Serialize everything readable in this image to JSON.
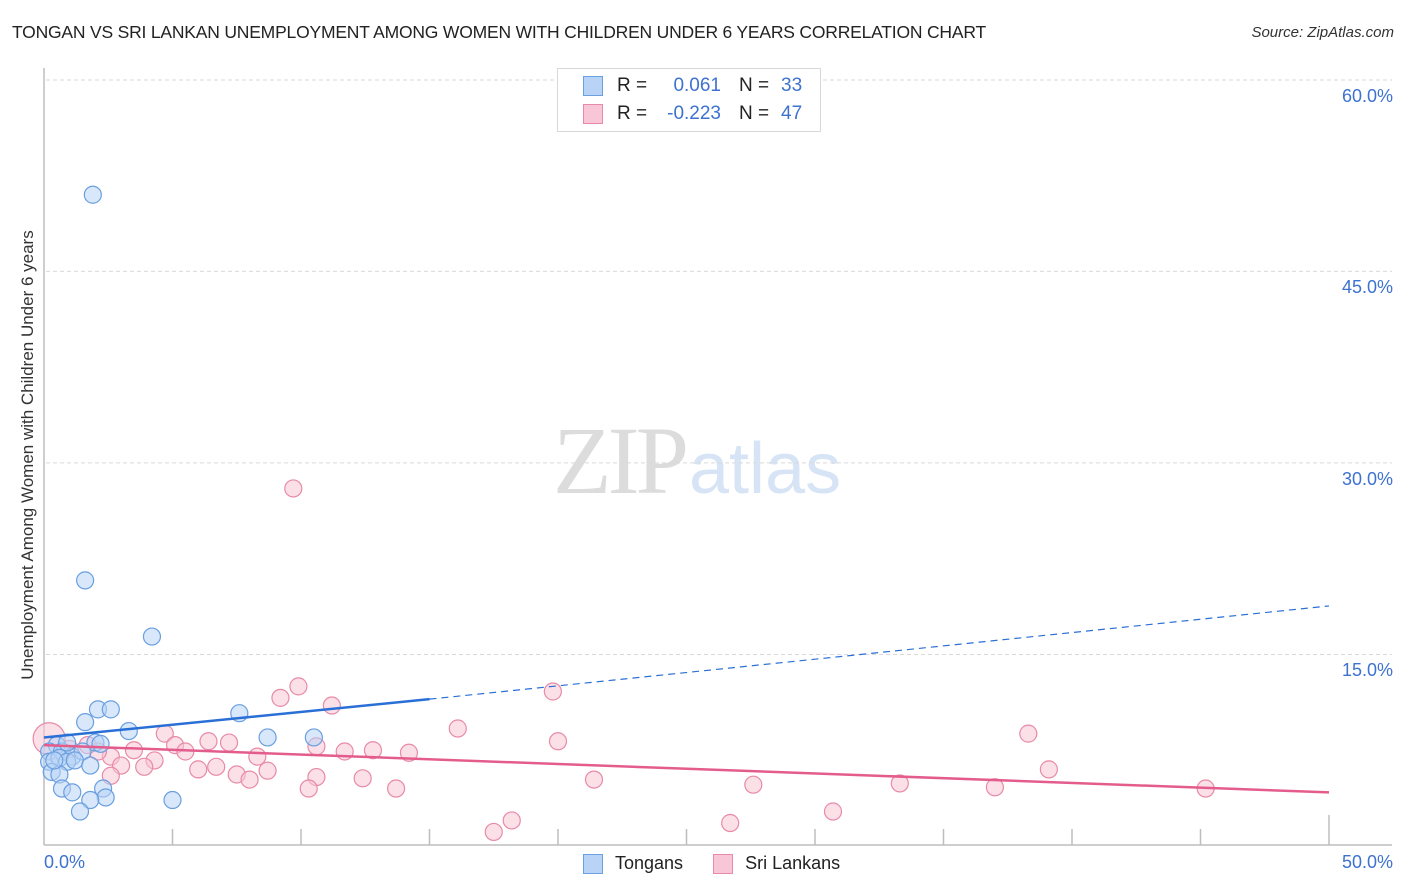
{
  "header": {
    "title": "TONGAN VS SRI LANKAN UNEMPLOYMENT AMONG WOMEN WITH CHILDREN UNDER 6 YEARS CORRELATION CHART",
    "source": "Source: ZipAtlas.com"
  },
  "watermark": {
    "zip": "ZIP",
    "atlas": "atlas"
  },
  "colors": {
    "tongans_fill": "#b8d3f5",
    "tongans_stroke": "#6a9fe0",
    "tongans_line": "#2a6fd6",
    "srilankans_fill": "#f8c6d6",
    "srilankans_stroke": "#e88aa8",
    "srilankans_line": "#e45c8c",
    "axis_text": "#3d72d0"
  },
  "legend": {
    "rows": [
      {
        "r_label": "R =",
        "r_value": "0.061",
        "n_label": "N =",
        "n_value": "33"
      },
      {
        "r_label": "R =",
        "r_value": "-0.223",
        "n_label": "N =",
        "n_value": "47"
      }
    ]
  },
  "bottom_legend": {
    "items": [
      {
        "label": "Tongans"
      },
      {
        "label": "Sri Lankans"
      }
    ]
  },
  "axes": {
    "ylabel": "Unemployment Among Women with Children Under 6 years",
    "y_ticks": [
      "60.0%",
      "45.0%",
      "30.0%",
      "15.0%"
    ],
    "x_ticks": [
      "0.0%",
      "50.0%"
    ]
  },
  "chart_data": {
    "type": "scatter",
    "title": "TONGAN VS SRI LANKAN UNEMPLOYMENT AMONG WOMEN WITH CHILDREN UNDER 6 YEARS CORRELATION CHART",
    "xlabel": "",
    "ylabel": "Unemployment Among Women with Children Under 6 years",
    "xlim": [
      0,
      50
    ],
    "ylim": [
      0,
      63
    ],
    "x_tick_labels": [
      "0.0%",
      "50.0%"
    ],
    "y_tick_labels": [
      "15.0%",
      "30.0%",
      "45.0%",
      "60.0%"
    ],
    "grid": "horizontal dashed",
    "legend_position": "top-center and bottom-center",
    "series": [
      {
        "name": "Tongans",
        "R": 0.061,
        "N": 33,
        "trend": {
          "x0": 0,
          "y0": 8.5,
          "x1": 15,
          "y1": 11.5,
          "extended_to": {
            "x": 50,
            "y": 18.8
          },
          "style": "solid then dashed"
        },
        "points": [
          [
            1.9,
            51.0
          ],
          [
            1.6,
            20.8
          ],
          [
            4.2,
            16.4
          ],
          [
            2.1,
            10.7
          ],
          [
            2.6,
            10.7
          ],
          [
            1.6,
            9.7
          ],
          [
            3.3,
            9.0
          ],
          [
            7.6,
            10.4
          ],
          [
            8.7,
            8.5
          ],
          [
            10.5,
            8.5
          ],
          [
            0.5,
            7.9
          ],
          [
            2.0,
            8.1
          ],
          [
            2.2,
            8.0
          ],
          [
            0.2,
            7.4
          ],
          [
            0.7,
            7.4
          ],
          [
            1.1,
            7.0
          ],
          [
            1.5,
            7.4
          ],
          [
            0.2,
            6.6
          ],
          [
            0.6,
            6.9
          ],
          [
            0.9,
            6.6
          ],
          [
            1.2,
            6.7
          ],
          [
            0.3,
            5.8
          ],
          [
            0.6,
            5.6
          ],
          [
            0.7,
            4.5
          ],
          [
            1.1,
            4.2
          ],
          [
            2.3,
            4.5
          ],
          [
            2.4,
            3.8
          ],
          [
            1.8,
            3.6
          ],
          [
            5.0,
            3.6
          ],
          [
            1.4,
            2.7
          ],
          [
            0.4,
            6.7
          ],
          [
            1.8,
            6.3
          ],
          [
            0.9,
            8.1
          ]
        ]
      },
      {
        "name": "Sri Lankans",
        "R": -0.223,
        "N": 47,
        "trend": {
          "x0": 0,
          "y0": 7.9,
          "x1": 50,
          "y1": 4.2,
          "style": "solid"
        },
        "points": [
          [
            0.2,
            8.4
          ],
          [
            9.7,
            28.0
          ],
          [
            9.9,
            12.5
          ],
          [
            9.2,
            11.6
          ],
          [
            11.2,
            11.0
          ],
          [
            19.8,
            12.1
          ],
          [
            16.1,
            9.2
          ],
          [
            20.0,
            8.2
          ],
          [
            38.3,
            8.8
          ],
          [
            39.1,
            6.0
          ],
          [
            4.7,
            8.8
          ],
          [
            5.1,
            7.9
          ],
          [
            5.5,
            7.4
          ],
          [
            6.4,
            8.2
          ],
          [
            7.2,
            8.1
          ],
          [
            3.5,
            7.5
          ],
          [
            4.3,
            6.7
          ],
          [
            8.3,
            7.0
          ],
          [
            10.6,
            7.8
          ],
          [
            11.7,
            7.4
          ],
          [
            12.8,
            7.5
          ],
          [
            14.2,
            7.3
          ],
          [
            2.6,
            7.0
          ],
          [
            2.1,
            7.4
          ],
          [
            3.0,
            6.3
          ],
          [
            3.9,
            6.2
          ],
          [
            6.0,
            6.0
          ],
          [
            6.7,
            6.2
          ],
          [
            7.5,
            5.6
          ],
          [
            8.7,
            5.9
          ],
          [
            2.6,
            5.5
          ],
          [
            8.0,
            5.2
          ],
          [
            10.6,
            5.4
          ],
          [
            12.4,
            5.3
          ],
          [
            21.4,
            5.2
          ],
          [
            10.3,
            4.5
          ],
          [
            13.7,
            4.5
          ],
          [
            27.6,
            4.8
          ],
          [
            33.3,
            4.9
          ],
          [
            37.0,
            4.6
          ],
          [
            45.2,
            4.5
          ],
          [
            18.2,
            2.0
          ],
          [
            17.5,
            1.1
          ],
          [
            26.7,
            1.8
          ],
          [
            30.7,
            2.7
          ],
          [
            1.7,
            7.9
          ],
          [
            1.0,
            7.6
          ]
        ]
      }
    ]
  }
}
